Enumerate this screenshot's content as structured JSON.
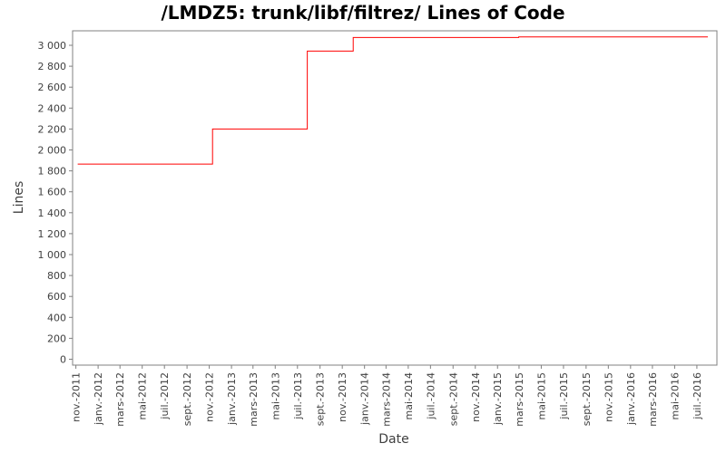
{
  "chart_data": {
    "type": "line",
    "title": "/LMDZ5: trunk/libf/filtrez/ Lines of Code",
    "xlabel": "Date",
    "ylabel": "Lines",
    "ylim": [
      0,
      3100
    ],
    "y_ticks": [
      0,
      200,
      400,
      600,
      800,
      1000,
      1200,
      1400,
      1600,
      1800,
      2000,
      2200,
      2400,
      2600,
      2800,
      3000
    ],
    "y_tick_labels": [
      "0",
      "200",
      "400",
      "600",
      "800",
      "1 000",
      "1 200",
      "1 400",
      "1 600",
      "1 800",
      "2 000",
      "2 200",
      "2 400",
      "2 600",
      "2 800",
      "3 000"
    ],
    "x_range": [
      "2011-10-23",
      "2016-08-25"
    ],
    "x_ticks": [
      "2011-11-01",
      "2012-01-01",
      "2012-03-01",
      "2012-05-01",
      "2012-07-01",
      "2012-09-01",
      "2012-11-01",
      "2013-01-01",
      "2013-03-01",
      "2013-05-01",
      "2013-07-01",
      "2013-09-01",
      "2013-11-01",
      "2014-01-01",
      "2014-03-01",
      "2014-05-01",
      "2014-07-01",
      "2014-09-01",
      "2014-11-01",
      "2015-01-01",
      "2015-03-01",
      "2015-05-01",
      "2015-07-01",
      "2015-09-01",
      "2015-11-01",
      "2016-01-01",
      "2016-03-01",
      "2016-05-01",
      "2016-07-01"
    ],
    "x_tick_labels": [
      "nov.-2011",
      "janv.-2012",
      "mars-2012",
      "mai-2012",
      "juil.-2012",
      "sept.-2012",
      "nov.-2012",
      "janv.-2013",
      "mars-2013",
      "mai-2013",
      "juil.-2013",
      "sept.-2013",
      "nov.-2013",
      "janv.-2014",
      "mars-2014",
      "mai-2014",
      "juil.-2014",
      "sept.-2014",
      "nov.-2014",
      "janv.-2015",
      "mars-2015",
      "mai-2015",
      "juil.-2015",
      "sept.-2015",
      "nov.-2015",
      "janv.-2016",
      "mars-2016",
      "mai-2016",
      "juil.-2016"
    ],
    "grid": false,
    "series": [
      {
        "step": true,
        "color": "#ff0000",
        "points": [
          {
            "x": "2011-11-06",
            "y": 1865
          },
          {
            "x": "2012-11-10",
            "y": 2200
          },
          {
            "x": "2013-07-28",
            "y": 2945
          },
          {
            "x": "2013-12-01",
            "y": 3075
          },
          {
            "x": "2015-02-28",
            "y": 3080
          },
          {
            "x": "2016-07-31",
            "y": 3080
          }
        ]
      }
    ]
  }
}
